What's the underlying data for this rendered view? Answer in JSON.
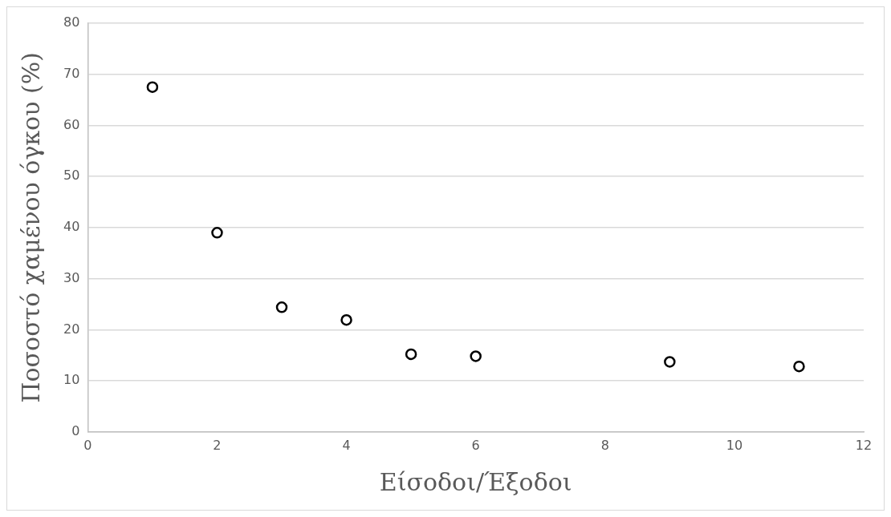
{
  "chart_data": {
    "type": "scatter",
    "xlabel": "Είσοδοι/Έξοδοι",
    "ylabel": "Ποσοστό χαμένου όγκου (%)",
    "x": [
      1,
      2,
      3,
      4,
      5,
      6,
      9,
      11
    ],
    "series": [
      {
        "color": "#000000",
        "values": [
          67.5,
          39,
          24.4,
          21.9,
          15.2,
          14.8,
          13.7,
          12.8
        ]
      }
    ],
    "xlim": [
      0,
      12
    ],
    "xticks": [
      0,
      2,
      4,
      6,
      8,
      10,
      12
    ],
    "ylim": [
      0,
      80
    ],
    "yticks": [
      0,
      10,
      20,
      30,
      40,
      50,
      60,
      70,
      80
    ],
    "grid": "y",
    "marker": "circle",
    "legend": false
  }
}
